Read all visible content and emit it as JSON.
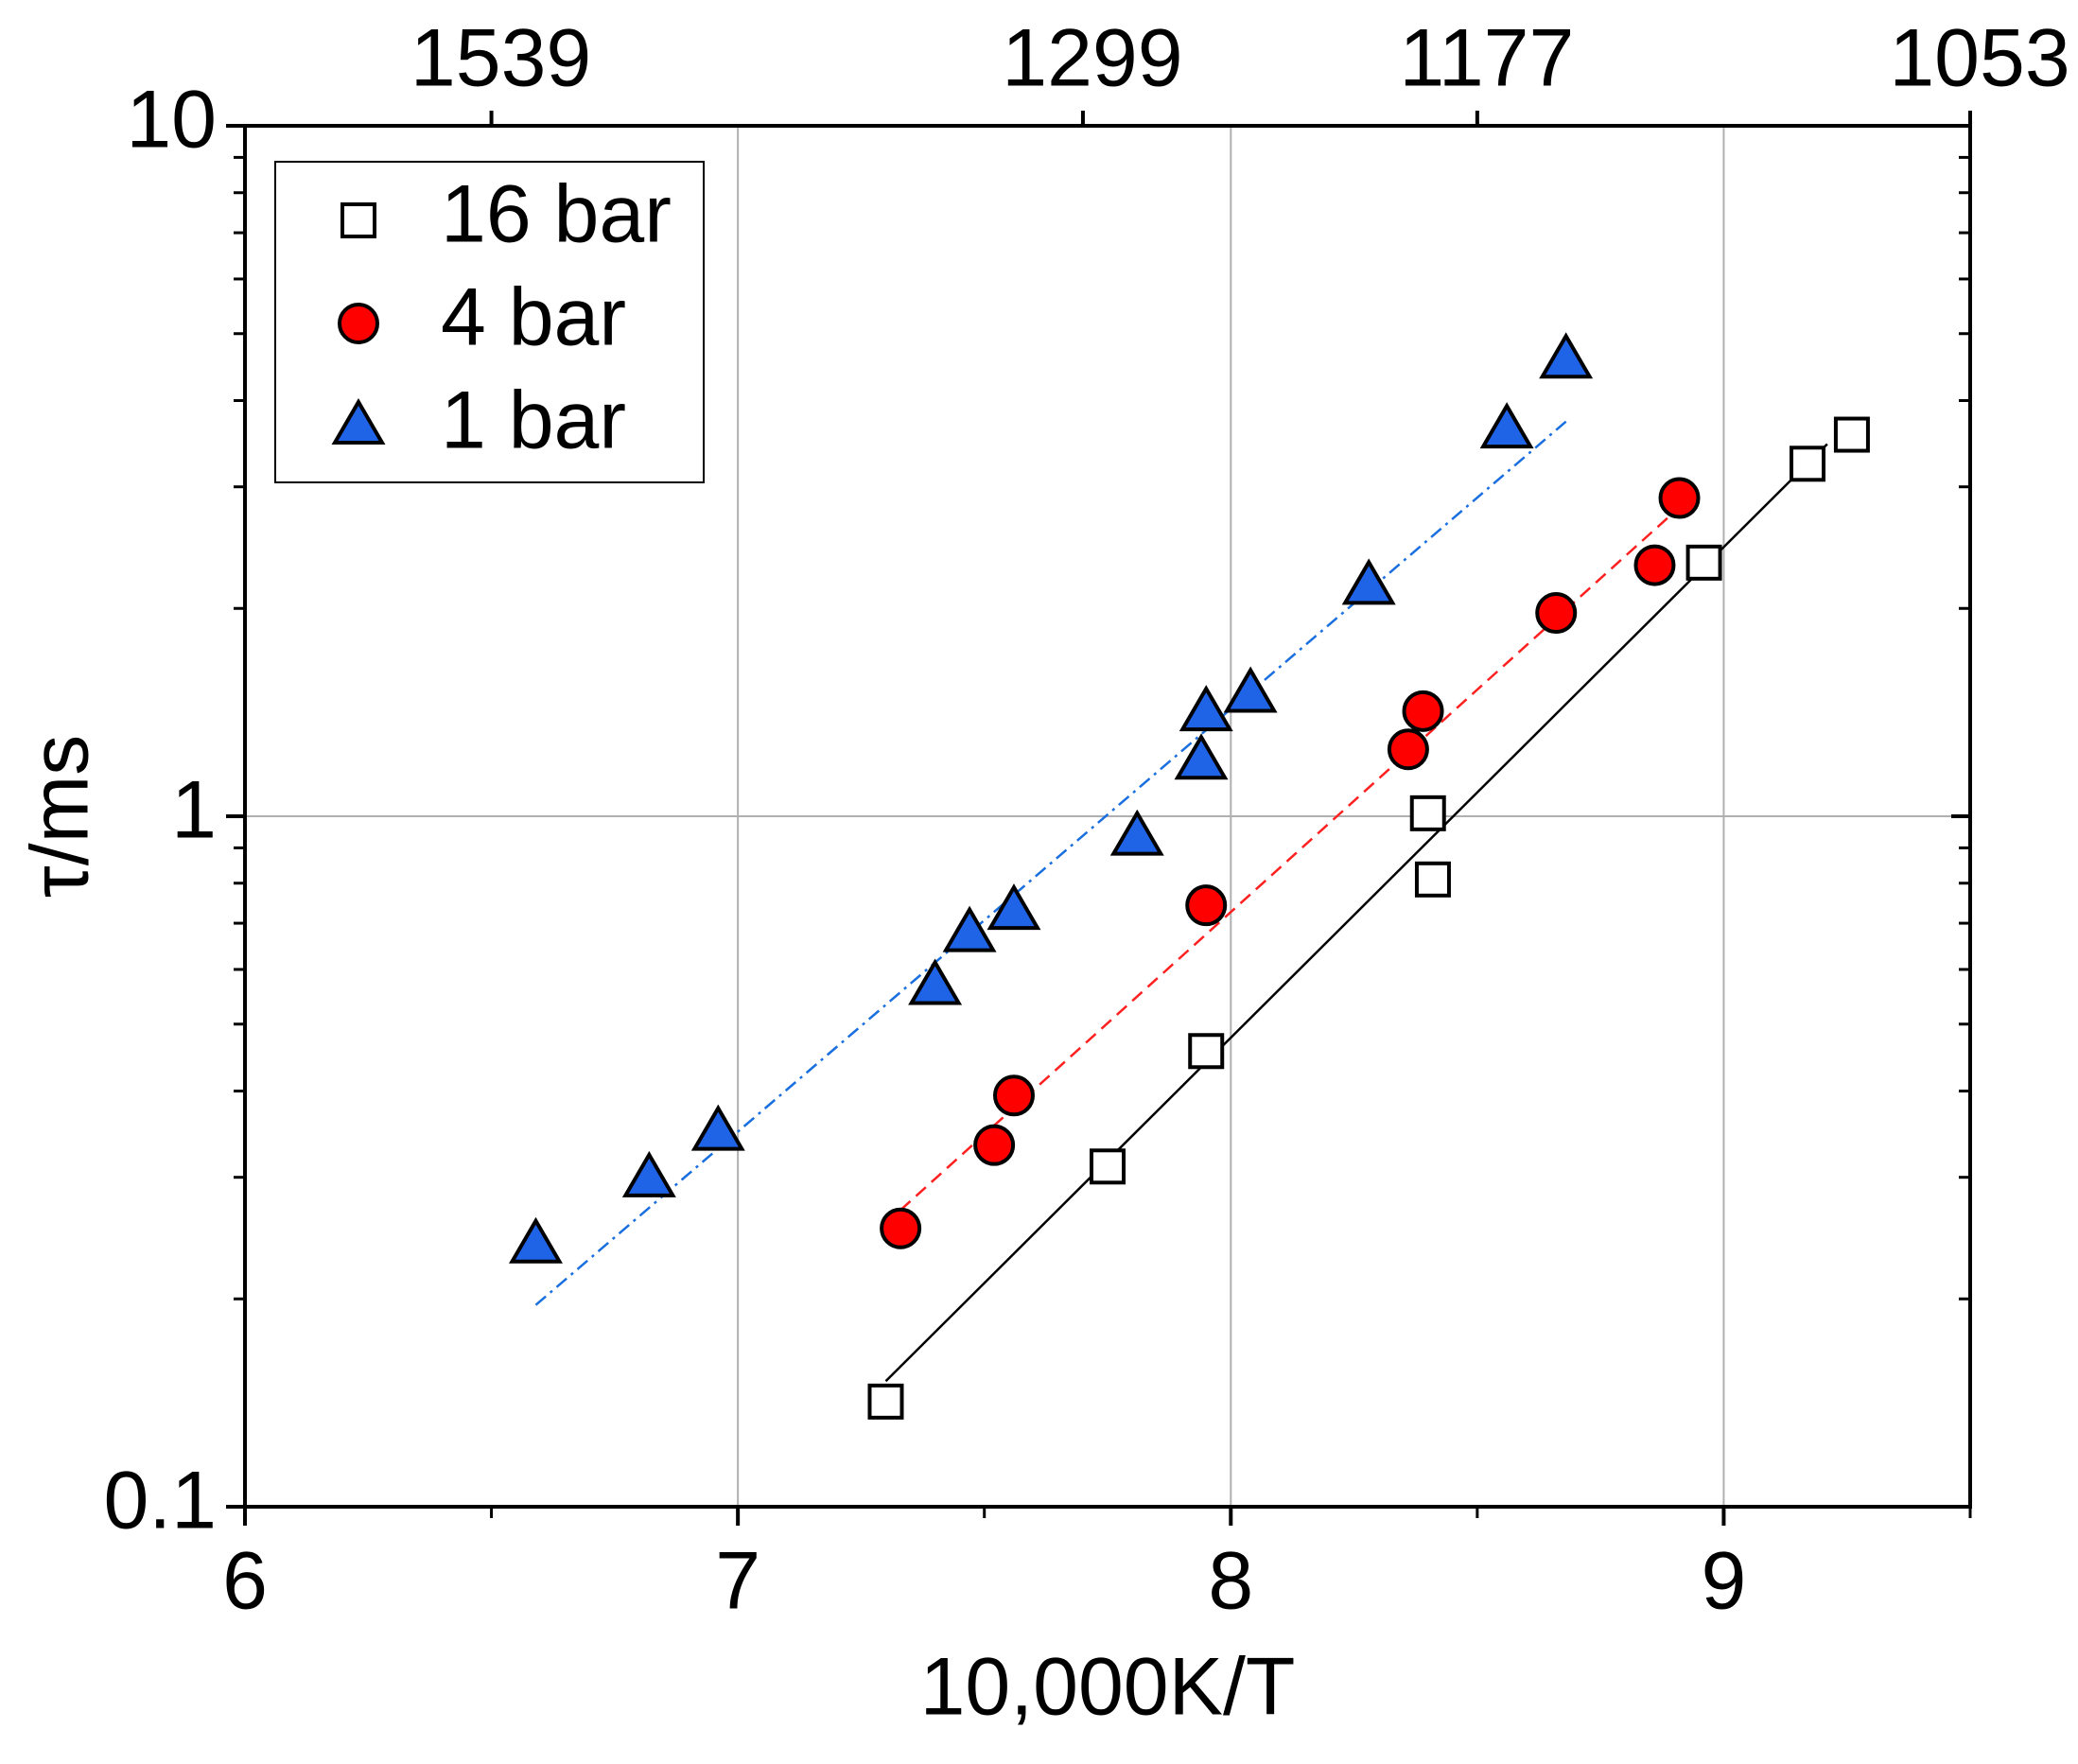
{
  "chart_data": {
    "type": "scatter",
    "x_label": "10,000K/T",
    "y_label": "τ/ms",
    "xlim": [
      6,
      9.5
    ],
    "xticks": [
      6,
      7,
      8,
      9
    ],
    "xminor_ticks": [
      6.5,
      7.5,
      8.5,
      9.5
    ],
    "top_xticks": [
      {
        "value": 6.5,
        "label": "1539"
      },
      {
        "value": 7.7,
        "label": "1299"
      },
      {
        "value": 8.5,
        "label": "1177"
      },
      {
        "value": 9.5,
        "label": "1053"
      }
    ],
    "ylim": [
      0.1,
      10
    ],
    "yscale": "log",
    "yticks": [
      0.1,
      1,
      10
    ],
    "yminor_ticks": [
      0.2,
      0.3,
      0.4,
      0.5,
      0.6,
      0.7,
      0.8,
      0.9,
      2,
      3,
      4,
      5,
      6,
      7,
      8,
      9
    ],
    "grid": true,
    "legend": "upper left",
    "series": [
      {
        "name": "16 bar",
        "color": "#ffffff",
        "marker": "square",
        "x": [
          7.3,
          7.75,
          7.95,
          8.4,
          8.41,
          8.96,
          9.17,
          9.26
        ],
        "values": [
          0.142,
          0.311,
          0.457,
          1.01,
          0.81,
          2.33,
          3.24,
          3.57
        ]
      },
      {
        "name": "4 bar",
        "color": "#ff0000",
        "marker": "circle",
        "x": [
          7.33,
          7.52,
          7.56,
          7.95,
          8.36,
          8.39,
          8.66,
          8.86,
          8.91
        ],
        "values": [
          0.253,
          0.334,
          0.394,
          0.743,
          1.25,
          1.42,
          1.97,
          2.31,
          2.89
        ]
      },
      {
        "name": "1 bar",
        "color": "#1f63e6",
        "marker": "triangle",
        "x": [
          6.59,
          6.82,
          6.96,
          7.4,
          7.47,
          7.56,
          7.81,
          7.94,
          7.95,
          8.04,
          8.28,
          8.56,
          8.68
        ],
        "values": [
          0.239,
          0.298,
          0.348,
          0.566,
          0.675,
          0.727,
          0.931,
          1.2,
          1.41,
          1.5,
          2.15,
          3.62,
          4.57
        ]
      }
    ],
    "fits": [
      {
        "color": "#000000",
        "dash": "solid",
        "x": [
          7.3,
          9.21
        ],
        "values": [
          0.152,
          3.46
        ]
      },
      {
        "color": "#ff2020",
        "dash": "dashed",
        "x": [
          7.33,
          8.89
        ],
        "values": [
          0.269,
          2.72
        ]
      },
      {
        "color": "#1a6fe0",
        "dash": "dashdot",
        "x": [
          6.59,
          8.68
        ],
        "values": [
          0.196,
          3.73
        ]
      }
    ]
  }
}
